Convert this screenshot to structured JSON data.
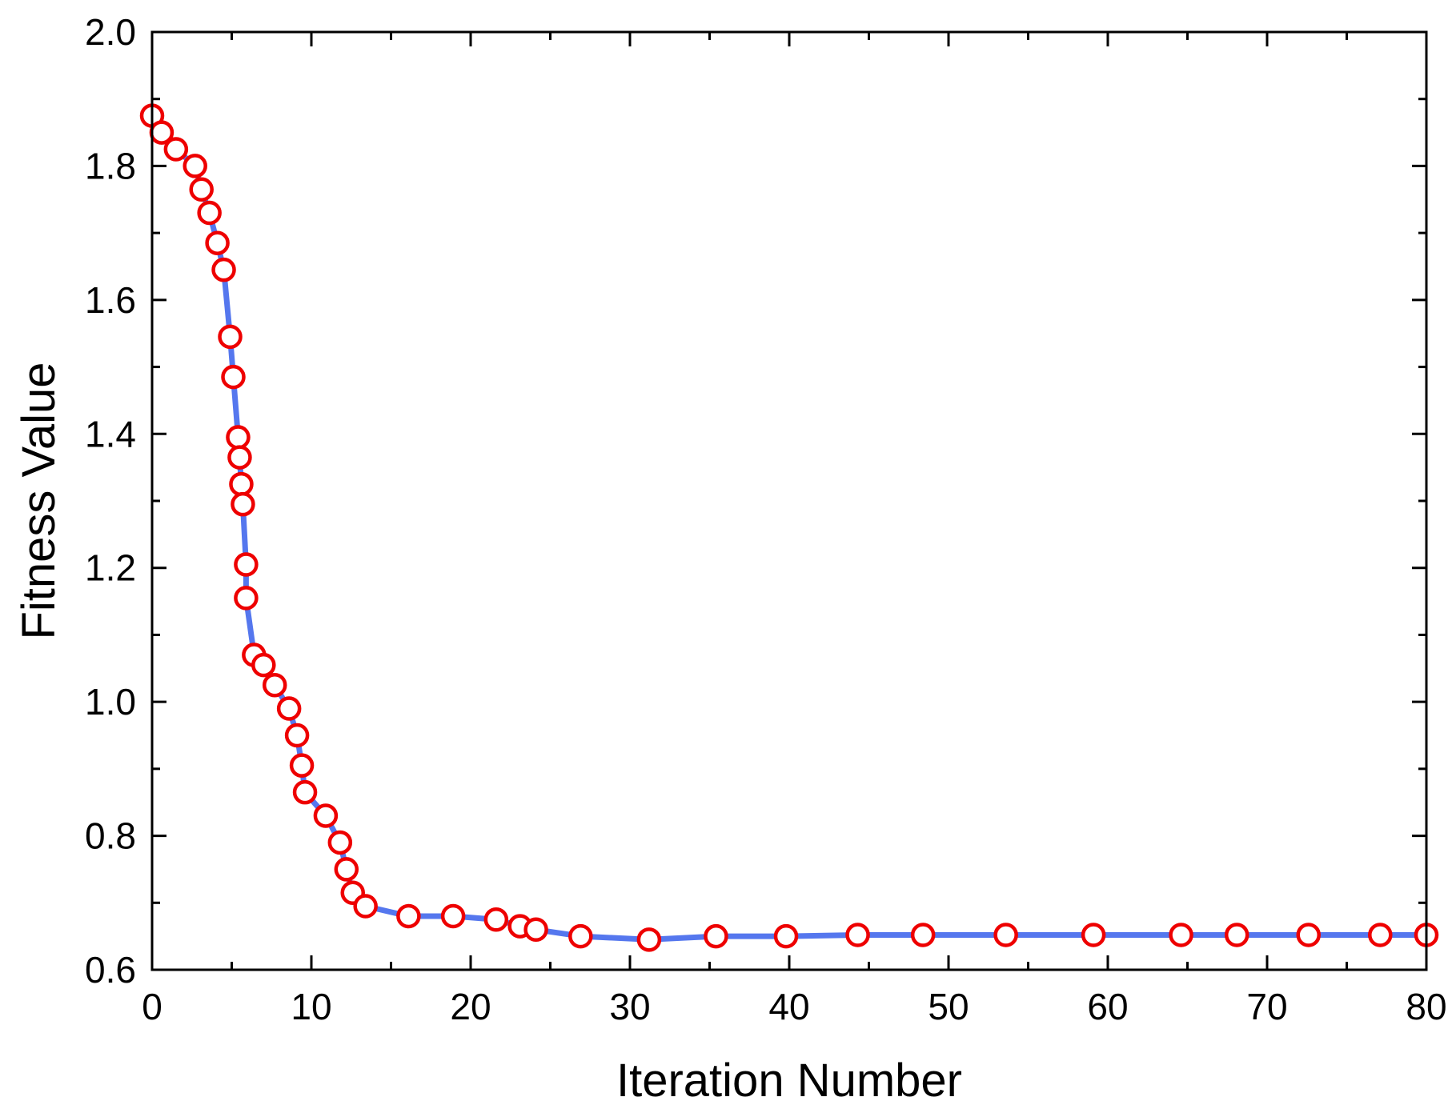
{
  "chart_data": {
    "type": "line",
    "title": "",
    "xlabel": "Iteration Number",
    "ylabel": "Fitness Value",
    "xlim": [
      0,
      80
    ],
    "ylim": [
      0.6,
      2.0
    ],
    "xticks": [
      0,
      10,
      20,
      30,
      40,
      50,
      60,
      70,
      80
    ],
    "xtick_labels": [
      "0",
      "10",
      "20",
      "30",
      "40",
      "50",
      "60",
      "70",
      "80"
    ],
    "yticks": [
      0.6,
      0.8,
      1.0,
      1.2,
      1.4,
      1.6,
      1.8,
      2.0
    ],
    "ytick_labels": [
      "0.6",
      "0.8",
      "1.0",
      "1.2",
      "1.4",
      "1.6",
      "1.8",
      "2.0"
    ],
    "grid": false,
    "legend": "none",
    "line_color": "#5577ee",
    "marker_color": "#ee0000",
    "x": [
      0.0,
      0.6,
      1.5,
      2.7,
      3.1,
      3.6,
      4.1,
      4.5,
      4.9,
      5.1,
      5.4,
      5.5,
      5.6,
      5.7,
      5.9,
      5.9,
      6.4,
      7.0,
      7.7,
      8.6,
      9.1,
      9.4,
      9.6,
      10.9,
      11.8,
      12.2,
      12.6,
      13.4,
      16.1,
      18.9,
      21.6,
      23.1,
      24.1,
      26.9,
      31.2,
      35.4,
      39.8,
      44.3,
      48.4,
      53.6,
      59.1,
      64.6,
      68.1,
      72.6,
      77.1,
      80.0
    ],
    "y": [
      1.875,
      1.85,
      1.825,
      1.8,
      1.765,
      1.73,
      1.685,
      1.645,
      1.545,
      1.485,
      1.395,
      1.365,
      1.325,
      1.295,
      1.205,
      1.155,
      1.07,
      1.055,
      1.025,
      0.99,
      0.95,
      0.905,
      0.865,
      0.83,
      0.79,
      0.75,
      0.715,
      0.695,
      0.68,
      0.68,
      0.675,
      0.665,
      0.66,
      0.65,
      0.645,
      0.65,
      0.65,
      0.652,
      0.652,
      0.652,
      0.652,
      0.652,
      0.652,
      0.652,
      0.652,
      0.652
    ]
  }
}
